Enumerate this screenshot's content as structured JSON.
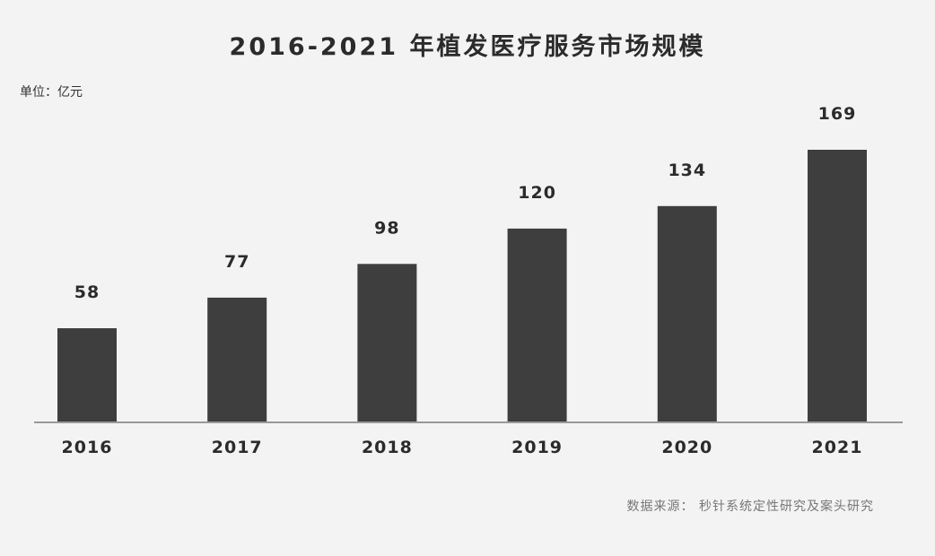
{
  "chart_data": {
    "type": "bar",
    "title": "2016-2021 年植发医疗服务市场规模",
    "unit": "单位：亿元",
    "categories": [
      "2016",
      "2017",
      "2018",
      "2019",
      "2020",
      "2021"
    ],
    "values": [
      58,
      77,
      98,
      120,
      134,
      169
    ],
    "xlabel": "",
    "ylabel": "",
    "ylim": [
      0,
      169
    ],
    "grid": false,
    "legend": "none",
    "bar_color": "#3e3e3f",
    "axis_color": "#999999"
  },
  "source": {
    "label": "数据来源：",
    "text": "秒针系统定性研究及案头研究"
  }
}
